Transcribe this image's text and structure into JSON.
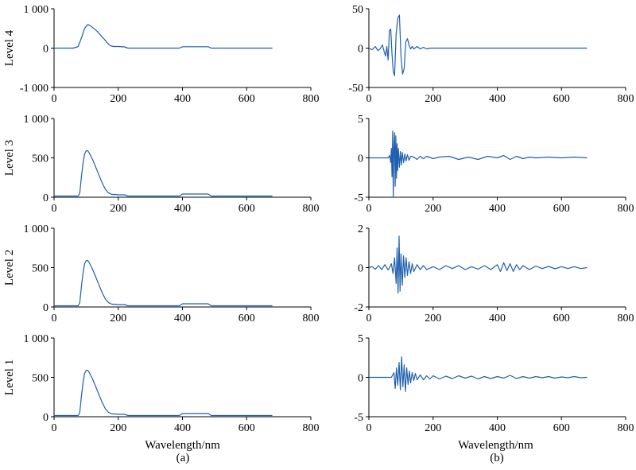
{
  "chart_data": [
    {
      "type": "line",
      "panel": "a",
      "level": "Level 4",
      "xlim": [
        0,
        800
      ],
      "ylim": [
        -1000,
        1000
      ],
      "xticks": [
        "0",
        "200",
        "400",
        "600",
        "800"
      ],
      "yticks": [
        "-1 000",
        "0",
        "1 000"
      ],
      "x": [
        0,
        60,
        75,
        85,
        95,
        105,
        115,
        125,
        135,
        145,
        155,
        165,
        175,
        185,
        200,
        220,
        230,
        390,
        400,
        480,
        490,
        680
      ],
      "y": [
        0,
        0,
        40,
        250,
        500,
        600,
        560,
        490,
        420,
        330,
        240,
        140,
        60,
        40,
        40,
        30,
        0,
        0,
        35,
        35,
        0,
        0
      ],
      "xlabel": "",
      "ylabel": ""
    },
    {
      "type": "line",
      "panel": "b",
      "level": "Level 4",
      "xlim": [
        0,
        800
      ],
      "ylim": [
        -50,
        50
      ],
      "xticks": [
        "0",
        "200",
        "400",
        "600",
        "800"
      ],
      "yticks": [
        "-50",
        "0",
        "50"
      ],
      "x": [
        0,
        10,
        20,
        28,
        35,
        42,
        48,
        52,
        56,
        60,
        64,
        68,
        72,
        76,
        80,
        85,
        90,
        95,
        100,
        105,
        110,
        115,
        120,
        125,
        130,
        135,
        140,
        150,
        160,
        170,
        180,
        190,
        200,
        210,
        680
      ],
      "y": [
        0,
        -2,
        2,
        -3,
        -1,
        4,
        -5,
        -10,
        2,
        -15,
        22,
        24,
        -8,
        -30,
        -35,
        18,
        38,
        42,
        -10,
        -33,
        -26,
        8,
        12,
        4,
        -1,
        2,
        -1,
        2,
        -1,
        1,
        -1,
        0,
        0,
        0,
        0
      ],
      "xlabel": "",
      "ylabel": ""
    },
    {
      "type": "line",
      "panel": "a",
      "level": "Level 3",
      "xlim": [
        0,
        800
      ],
      "ylim": [
        0,
        1000
      ],
      "xticks": [
        "0",
        "200",
        "400",
        "600",
        "800"
      ],
      "yticks": [
        "0",
        "500",
        "1 000"
      ],
      "x": [
        0,
        75,
        80,
        85,
        90,
        95,
        100,
        105,
        110,
        120,
        130,
        140,
        150,
        160,
        170,
        180,
        190,
        200,
        220,
        230,
        390,
        400,
        480,
        490,
        680
      ],
      "y": [
        15,
        15,
        50,
        250,
        420,
        550,
        590,
        590,
        560,
        480,
        380,
        280,
        180,
        100,
        55,
        35,
        35,
        30,
        30,
        15,
        15,
        40,
        40,
        15,
        15
      ],
      "xlabel": "",
      "ylabel": ""
    },
    {
      "type": "line",
      "panel": "b",
      "level": "Level 3",
      "xlim": [
        0,
        800
      ],
      "ylim": [
        -5,
        5
      ],
      "xticks": [
        "0",
        "200",
        "400",
        "600",
        "800"
      ],
      "yticks": [
        "-5",
        "0",
        "5"
      ],
      "x": [
        0,
        60,
        65,
        68,
        70,
        72,
        74,
        76,
        78,
        80,
        82,
        84,
        86,
        88,
        90,
        92,
        95,
        98,
        101,
        104,
        108,
        112,
        116,
        120,
        125,
        130,
        140,
        150,
        160,
        170,
        180,
        200,
        220,
        250,
        280,
        310,
        340,
        370,
        400,
        420,
        440,
        460,
        480,
        500,
        520,
        560,
        600,
        640,
        680
      ],
      "y": [
        0,
        0,
        0.3,
        -0.6,
        1.2,
        -2.4,
        3.4,
        -5,
        1.4,
        3.2,
        -3.6,
        2.8,
        -2.6,
        1.8,
        -1.6,
        1.2,
        -1.2,
        0.8,
        -0.9,
        0.7,
        -0.6,
        0.5,
        -0.4,
        0.4,
        -0.3,
        0.2,
        0.1,
        -0.2,
        0.2,
        -0.1,
        0.2,
        -0.1,
        0.1,
        0.2,
        -0.2,
        0.1,
        -0.2,
        0.2,
        0,
        0.3,
        -0.2,
        0.2,
        -0.1,
        0.1,
        0,
        0.1,
        0,
        0.1,
        0
      ],
      "xlabel": "",
      "ylabel": ""
    },
    {
      "type": "line",
      "panel": "a",
      "level": "Level 2",
      "xlim": [
        0,
        800
      ],
      "ylim": [
        0,
        1000
      ],
      "xticks": [
        "0",
        "200",
        "400",
        "600",
        "800"
      ],
      "yticks": [
        "0",
        "500",
        "1 000"
      ],
      "x": [
        0,
        75,
        80,
        85,
        90,
        95,
        100,
        105,
        110,
        120,
        130,
        140,
        150,
        160,
        170,
        180,
        190,
        200,
        220,
        230,
        390,
        400,
        480,
        490,
        680
      ],
      "y": [
        15,
        15,
        50,
        250,
        420,
        550,
        590,
        590,
        560,
        480,
        380,
        280,
        180,
        100,
        55,
        35,
        35,
        30,
        30,
        15,
        15,
        40,
        40,
        15,
        15
      ],
      "xlabel": "",
      "ylabel": ""
    },
    {
      "type": "line",
      "panel": "b",
      "level": "Level 2",
      "xlim": [
        0,
        800
      ],
      "ylim": [
        -2,
        2
      ],
      "xticks": [
        "0",
        "200",
        "400",
        "600",
        "800"
      ],
      "yticks": [
        "-2",
        "0",
        "2"
      ],
      "x": [
        0,
        10,
        20,
        30,
        40,
        50,
        60,
        70,
        75,
        80,
        85,
        88,
        91,
        94,
        97,
        100,
        104,
        108,
        112,
        116,
        120,
        125,
        130,
        135,
        140,
        150,
        160,
        170,
        180,
        200,
        220,
        240,
        260,
        280,
        300,
        320,
        340,
        360,
        380,
        400,
        410,
        420,
        430,
        440,
        450,
        460,
        470,
        480,
        500,
        520,
        540,
        560,
        580,
        600,
        620,
        640,
        660,
        680
      ],
      "y": [
        0,
        0.05,
        -0.08,
        0.1,
        -0.1,
        0.15,
        -0.12,
        0.2,
        -0.3,
        0.5,
        -0.8,
        1.0,
        -1.3,
        1.6,
        -1.2,
        0.7,
        -0.9,
        0.6,
        -0.5,
        0.5,
        -0.4,
        0.3,
        -0.3,
        0.2,
        -0.2,
        0.15,
        -0.1,
        0.1,
        -0.1,
        0.05,
        -0.1,
        0.1,
        -0.05,
        0.1,
        -0.1,
        0.05,
        -0.08,
        0.1,
        -0.1,
        0.15,
        -0.2,
        0.25,
        -0.15,
        0.2,
        -0.2,
        0.15,
        -0.1,
        0.1,
        -0.1,
        0.08,
        -0.05,
        0.06,
        -0.06,
        0.05,
        -0.05,
        0.05,
        -0.05,
        0
      ],
      "xlabel": "",
      "ylabel": ""
    },
    {
      "type": "line",
      "panel": "a",
      "level": "Level 1",
      "xlim": [
        0,
        800
      ],
      "ylim": [
        0,
        1000
      ],
      "xticks": [
        "0",
        "200",
        "400",
        "600",
        "800"
      ],
      "yticks": [
        "0",
        "500",
        "1 000"
      ],
      "x": [
        0,
        75,
        80,
        85,
        90,
        95,
        100,
        105,
        110,
        120,
        130,
        140,
        150,
        160,
        170,
        180,
        190,
        200,
        220,
        230,
        390,
        400,
        480,
        490,
        680
      ],
      "y": [
        15,
        15,
        50,
        250,
        420,
        550,
        590,
        590,
        560,
        480,
        380,
        280,
        180,
        100,
        55,
        35,
        35,
        30,
        30,
        15,
        15,
        40,
        40,
        15,
        15
      ],
      "xlabel": "Wavelength/nm",
      "ylabel": ""
    },
    {
      "type": "line",
      "panel": "b",
      "level": "Level 1",
      "xlim": [
        0,
        800
      ],
      "ylim": [
        -5,
        5
      ],
      "xticks": [
        "0",
        "200",
        "400",
        "600",
        "800"
      ],
      "yticks": [
        "-5",
        "0",
        "5"
      ],
      "x": [
        0,
        70,
        78,
        82,
        86,
        90,
        94,
        98,
        102,
        106,
        110,
        114,
        118,
        122,
        126,
        130,
        135,
        140,
        145,
        150,
        160,
        170,
        180,
        190,
        200,
        220,
        240,
        260,
        280,
        300,
        320,
        340,
        360,
        380,
        400,
        420,
        440,
        460,
        480,
        500,
        520,
        540,
        560,
        580,
        600,
        620,
        640,
        660,
        680
      ],
      "y": [
        0,
        0,
        0.6,
        -1.4,
        1.2,
        -1.0,
        1.9,
        -1.6,
        2.6,
        -1.2,
        1.6,
        -1.8,
        1.2,
        -0.9,
        0.8,
        -0.7,
        0.6,
        -0.4,
        0.5,
        -0.3,
        0.3,
        -0.3,
        0.2,
        -0.2,
        0.2,
        -0.2,
        0.15,
        -0.15,
        0.2,
        -0.1,
        0.15,
        -0.2,
        0.1,
        -0.15,
        0.1,
        -0.1,
        0.25,
        -0.15,
        0.1,
        -0.1,
        0.1,
        -0.05,
        0.1,
        -0.1,
        0.05,
        -0.05,
        0.1,
        -0.05,
        0
      ],
      "xlabel": "Wavelength/nm",
      "ylabel": ""
    }
  ],
  "panel_labels": {
    "a": "(a)",
    "b": "(b)"
  }
}
